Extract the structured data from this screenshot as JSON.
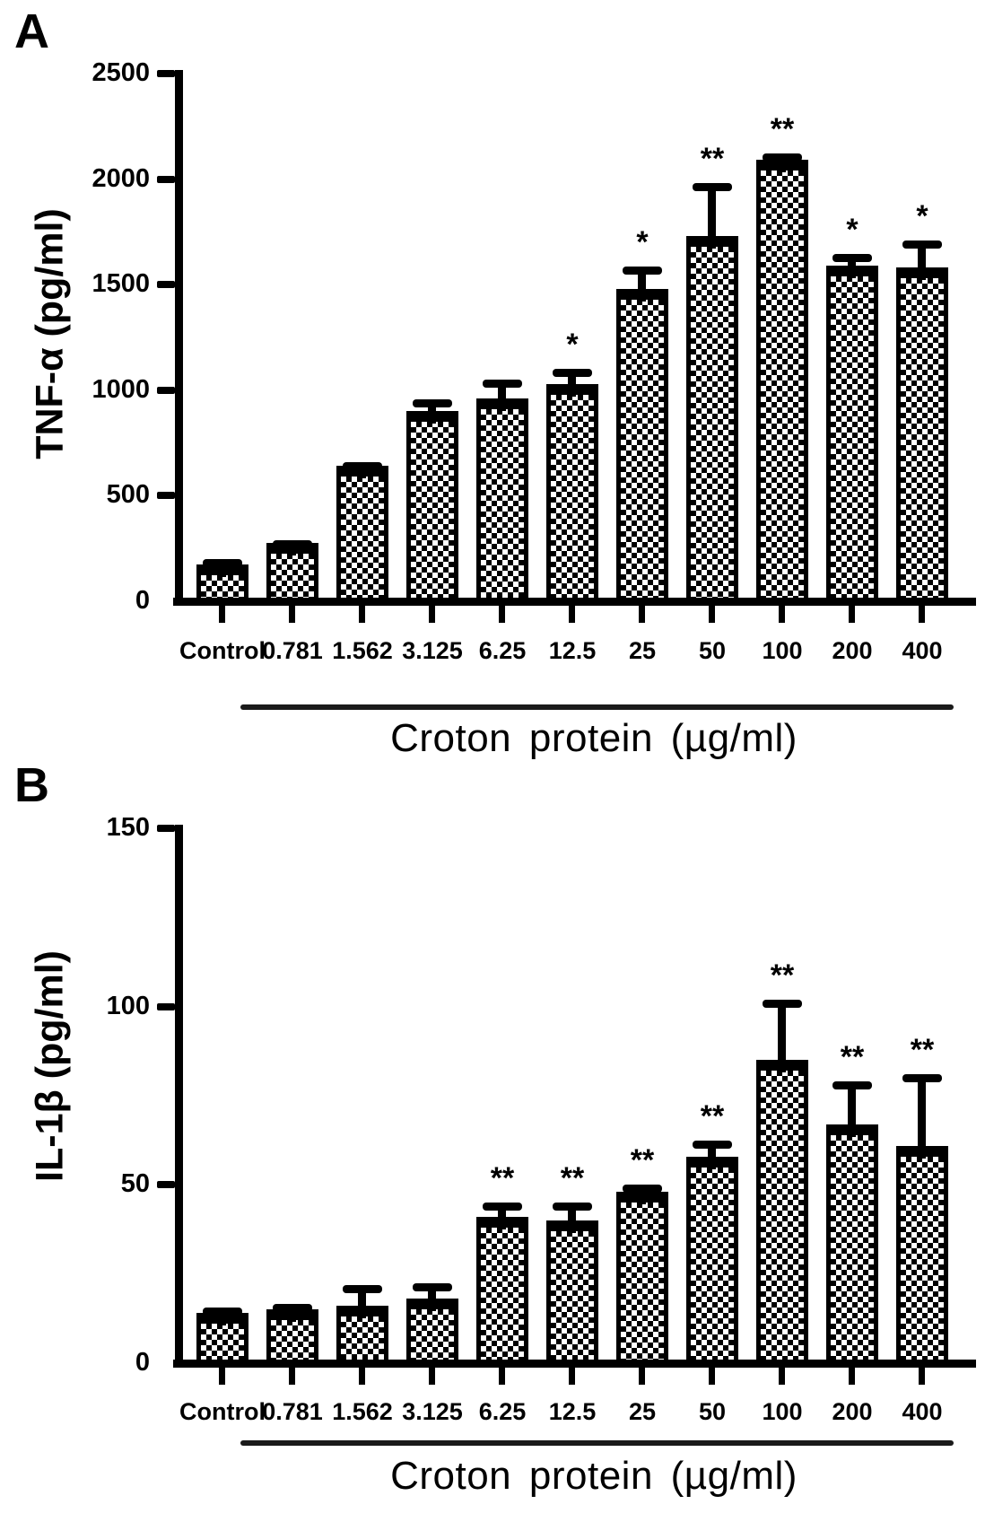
{
  "background_color": "#ffffff",
  "foreground_color": "#000000",
  "chart_data": [
    {
      "type": "bar",
      "panel_label": "A",
      "ylabel": "TNF-α (pg/ml)",
      "xlabel": "Croton protein (µg/ml)",
      "categories": [
        "Control",
        "0.781",
        "1.562",
        "3.125",
        "6.25",
        "12.5",
        "25",
        "50",
        "100",
        "200",
        "400"
      ],
      "values": [
        175,
        275,
        640,
        900,
        960,
        1030,
        1480,
        1730,
        2090,
        1590,
        1580
      ],
      "errors": [
        25,
        15,
        20,
        55,
        90,
        70,
        105,
        250,
        30,
        55,
        130
      ],
      "significance": [
        "",
        "",
        "",
        "",
        "",
        "*",
        "*",
        "**",
        "**",
        "*",
        "*"
      ],
      "ylim": [
        0,
        2500
      ],
      "y_ticks": [
        0,
        500,
        1000,
        1500,
        2000,
        2500
      ],
      "bar_style": "black-and-white checkerboard fill with black border",
      "error_bars": "upper only, capped",
      "grid": false,
      "legend": null,
      "dose_group_underline": true
    },
    {
      "type": "bar",
      "panel_label": "B",
      "ylabel": "IL-1β (pg/ml)",
      "xlabel": "Croton protein (µg/ml)",
      "categories": [
        "Control",
        "0.781",
        "1.562",
        "3.125",
        "6.25",
        "12.5",
        "25",
        "50",
        "100",
        "200",
        "400"
      ],
      "values": [
        14,
        15,
        16,
        18,
        41,
        40,
        48,
        58,
        85,
        67,
        61
      ],
      "errors": [
        1.5,
        1.5,
        6,
        4.5,
        4,
        5,
        2,
        4.5,
        17,
        12,
        20
      ],
      "significance": [
        "",
        "",
        "",
        "",
        "**",
        "**",
        "**",
        "**",
        "**",
        "**",
        "**"
      ],
      "ylim": [
        0,
        150
      ],
      "y_ticks": [
        0,
        50,
        100,
        150
      ],
      "bar_style": "black-and-white checkerboard fill with black border",
      "error_bars": "upper only, capped",
      "grid": false,
      "legend": null,
      "dose_group_underline": true
    }
  ]
}
